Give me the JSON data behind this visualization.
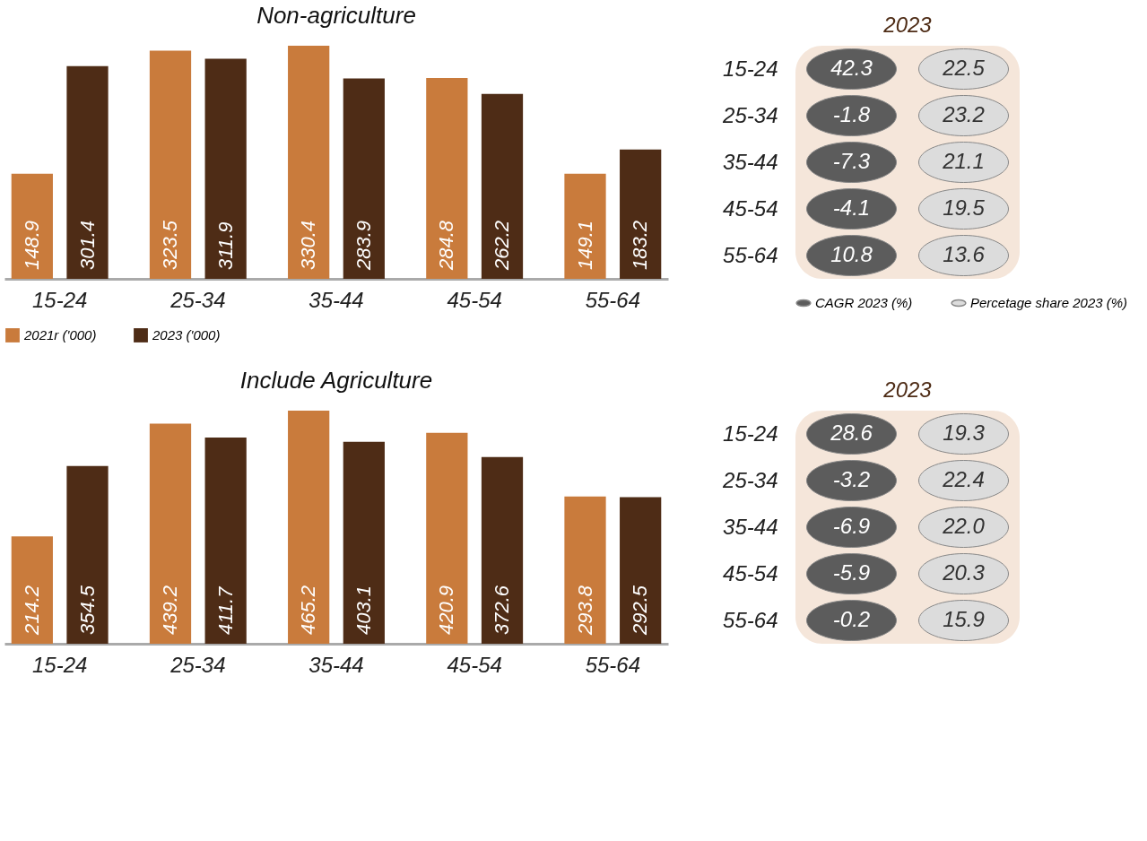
{
  "chart_data": [
    {
      "type": "bar",
      "title": "Non-agriculture",
      "categories": [
        "15-24",
        "25-34",
        "35-44",
        "45-54",
        "55-64"
      ],
      "series": [
        {
          "name": "2021r ('000)",
          "color": "#c97b3c",
          "values": [
            148.9,
            323.5,
            330.4,
            284.8,
            149.1
          ]
        },
        {
          "name": "2023 ('000)",
          "color": "#4e2c16",
          "values": [
            301.4,
            311.9,
            283.9,
            262.2,
            183.2
          ]
        }
      ],
      "data_labels": true,
      "legend": "bottom"
    },
    {
      "type": "other",
      "title": "2023",
      "categories": [
        "15-24",
        "25-34",
        "35-44",
        "45-54",
        "55-64"
      ],
      "series": [
        {
          "name": "CAGR 2023 (%)",
          "color": "#5c5c5c",
          "values": [
            42.3,
            -1.8,
            -7.3,
            -4.1,
            10.8
          ]
        },
        {
          "name": "Percetage share 2023 (%)",
          "color": "#dcdcdc",
          "values": [
            22.5,
            23.2,
            21.1,
            19.5,
            13.6
          ]
        }
      ],
      "data_labels": true,
      "legend": "bottom"
    },
    {
      "type": "bar",
      "title": "Include Agriculture",
      "categories": [
        "15-24",
        "25-34",
        "35-44",
        "45-54",
        "55-64"
      ],
      "series": [
        {
          "color": "#c97b3c",
          "values": [
            214.2,
            439.2,
            465.2,
            420.9,
            293.8
          ]
        },
        {
          "color": "#4e2c16",
          "values": [
            354.5,
            411.7,
            403.1,
            372.6,
            292.5
          ]
        }
      ],
      "data_labels": true
    },
    {
      "type": "other",
      "title": "2023",
      "categories": [
        "15-24",
        "25-34",
        "35-44",
        "45-54",
        "55-64"
      ],
      "series": [
        {
          "color": "#5c5c5c",
          "values": [
            28.6,
            -3.2,
            -6.9,
            -5.9,
            -0.2
          ]
        },
        {
          "color": "#dcdcdc",
          "values": [
            19.3,
            22.4,
            22.0,
            20.3,
            15.9
          ],
          "value_labels": [
            "19.3",
            "22.4",
            "22.0",
            "20.3",
            "15.9"
          ]
        }
      ],
      "data_labels": true
    }
  ]
}
